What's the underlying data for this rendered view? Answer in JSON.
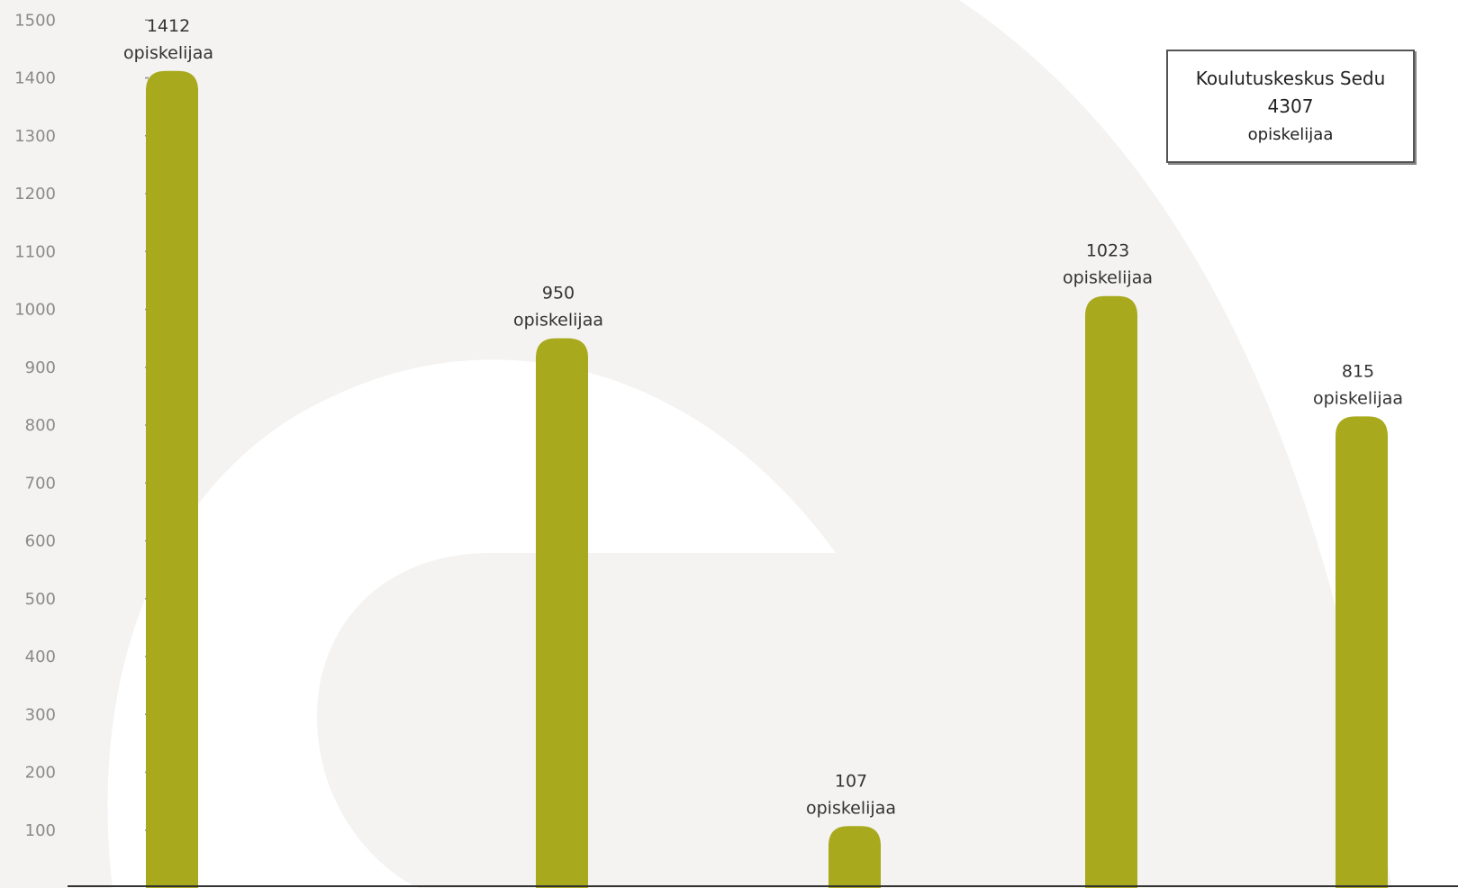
{
  "colors": {
    "bar": "#a8a91d",
    "background_shape": "#f4f3f2",
    "page": "#ffffff",
    "axis": "#333333",
    "tick": "#8a8a8a"
  },
  "info_box": {
    "title": "Koulutuskeskus Sedu",
    "total": "4307",
    "unit": "opiskelijaa"
  },
  "chart_data": {
    "type": "bar",
    "title": "",
    "xlabel": "",
    "ylabel": "",
    "ylim": [
      0,
      1500
    ],
    "yticks": [
      100,
      200,
      300,
      400,
      500,
      600,
      700,
      800,
      900,
      1000,
      1100,
      1200,
      1300,
      1400,
      1500
    ],
    "grid": false,
    "legend": "none",
    "categories": [
      "",
      "",
      "",
      "",
      ""
    ],
    "values": [
      1412,
      950,
      107,
      1023,
      815
    ],
    "data_labels": [
      {
        "value": "1412",
        "unit": "opiskelijaa"
      },
      {
        "value": "950",
        "unit": "opiskelijaa"
      },
      {
        "value": "107",
        "unit": "opiskelijaa"
      },
      {
        "value": "1023",
        "unit": "opiskelijaa"
      },
      {
        "value": "815",
        "unit": "opiskelijaa"
      }
    ]
  }
}
